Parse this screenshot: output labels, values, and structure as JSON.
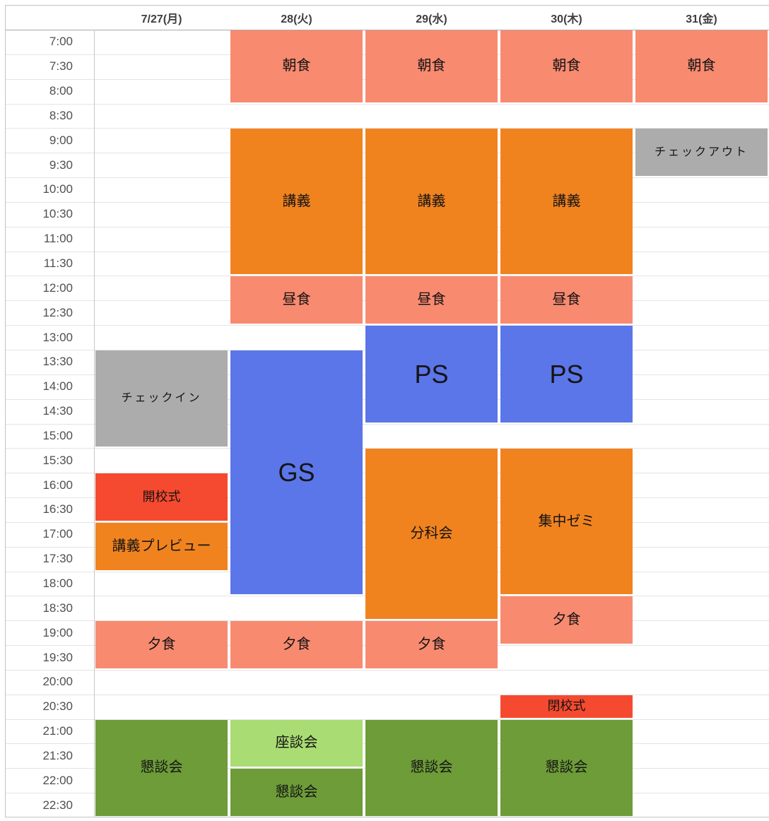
{
  "header": {
    "day_labels": [
      "7/27(月)",
      "28(火)",
      "29(水)",
      "30(木)",
      "31(金)"
    ]
  },
  "time_labels": [
    "7:00",
    "7:30",
    "8:00",
    "8:30",
    "9:00",
    "9:30",
    "10:00",
    "10:30",
    "11:00",
    "11:30",
    "12:00",
    "12:30",
    "13:00",
    "13:30",
    "14:00",
    "14:30",
    "15:00",
    "15:30",
    "16:00",
    "16:30",
    "17:00",
    "17:30",
    "18:00",
    "18:30",
    "19:00",
    "19:30",
    "20:00",
    "20:30",
    "21:00",
    "21:30",
    "22:00",
    "22:30"
  ],
  "palette": {
    "meal": "#F88A70",
    "lecture": "#F1831F",
    "neutral": "#ACACAC",
    "session": "#5B76E8",
    "ceremony": "#F54A2F",
    "social_dark": "#6D9C38",
    "social_light": "#A9DC72",
    "grid_line": "#E4E4E4",
    "outer_border": "#C2C2C2",
    "header_border": "#A9A9A9",
    "time_col_border": "#C6C6C6",
    "time_text": "#4F4F4F",
    "header_text": "#3F3F3F",
    "event_text": "#141414"
  },
  "events": [
    {
      "name": "checkin",
      "day": 0,
      "label": "チェックイン",
      "start": "13:30",
      "end": "15:30",
      "color": "neutral",
      "size": "small"
    },
    {
      "name": "opening-ceremony",
      "day": 0,
      "label": "開校式",
      "start": "16:00",
      "end": "17:00",
      "color": "ceremony",
      "size": "compact"
    },
    {
      "name": "lecture-preview",
      "day": 0,
      "label": "講義プレビュー",
      "start": "17:00",
      "end": "18:00",
      "color": "lecture",
      "size": "normal"
    },
    {
      "name": "dinner",
      "day": 0,
      "label": "夕食",
      "start": "19:00",
      "end": "20:00",
      "color": "meal",
      "size": "normal"
    },
    {
      "name": "social-gathering",
      "day": 0,
      "label": "懇談会",
      "start": "21:00",
      "end": "23:00",
      "color": "social_dark",
      "size": "normal"
    },
    {
      "name": "breakfast",
      "day": 1,
      "label": "朝食",
      "start": "7:00",
      "end": "8:30",
      "color": "meal",
      "size": "normal"
    },
    {
      "name": "lecture",
      "day": 1,
      "label": "講義",
      "start": "9:00",
      "end": "12:00",
      "color": "lecture",
      "size": "normal"
    },
    {
      "name": "lunch",
      "day": 1,
      "label": "昼食",
      "start": "12:00",
      "end": "13:00",
      "color": "meal",
      "size": "normal"
    },
    {
      "name": "gs-session",
      "day": 1,
      "label": "GS",
      "start": "13:30",
      "end": "18:30",
      "color": "session",
      "size": "large"
    },
    {
      "name": "dinner",
      "day": 1,
      "label": "夕食",
      "start": "19:00",
      "end": "20:00",
      "color": "meal",
      "size": "normal"
    },
    {
      "name": "roundtable",
      "day": 1,
      "label": "座談会",
      "start": "21:00",
      "end": "22:00",
      "color": "social_light",
      "size": "normal"
    },
    {
      "name": "social-gathering",
      "day": 1,
      "label": "懇談会",
      "start": "22:00",
      "end": "23:00",
      "color": "social_dark",
      "size": "normal"
    },
    {
      "name": "breakfast",
      "day": 2,
      "label": "朝食",
      "start": "7:00",
      "end": "8:30",
      "color": "meal",
      "size": "normal"
    },
    {
      "name": "lecture",
      "day": 2,
      "label": "講義",
      "start": "9:00",
      "end": "12:00",
      "color": "lecture",
      "size": "normal"
    },
    {
      "name": "lunch",
      "day": 2,
      "label": "昼食",
      "start": "12:00",
      "end": "13:00",
      "color": "meal",
      "size": "normal"
    },
    {
      "name": "ps-session",
      "day": 2,
      "label": "PS",
      "start": "13:00",
      "end": "15:00",
      "color": "session",
      "size": "large"
    },
    {
      "name": "breakout-session",
      "day": 2,
      "label": "分科会",
      "start": "15:30",
      "end": "19:00",
      "color": "lecture",
      "size": "normal"
    },
    {
      "name": "dinner",
      "day": 2,
      "label": "夕食",
      "start": "19:00",
      "end": "20:00",
      "color": "meal",
      "size": "normal"
    },
    {
      "name": "social-gathering",
      "day": 2,
      "label": "懇談会",
      "start": "21:00",
      "end": "23:00",
      "color": "social_dark",
      "size": "normal"
    },
    {
      "name": "breakfast",
      "day": 3,
      "label": "朝食",
      "start": "7:00",
      "end": "8:30",
      "color": "meal",
      "size": "normal"
    },
    {
      "name": "lecture",
      "day": 3,
      "label": "講義",
      "start": "9:00",
      "end": "12:00",
      "color": "lecture",
      "size": "normal"
    },
    {
      "name": "lunch",
      "day": 3,
      "label": "昼食",
      "start": "12:00",
      "end": "13:00",
      "color": "meal",
      "size": "normal"
    },
    {
      "name": "ps-session",
      "day": 3,
      "label": "PS",
      "start": "13:00",
      "end": "15:00",
      "color": "session",
      "size": "large"
    },
    {
      "name": "intensive-seminar",
      "day": 3,
      "label": "集中ゼミ",
      "start": "15:30",
      "end": "18:30",
      "color": "lecture",
      "size": "normal"
    },
    {
      "name": "dinner",
      "day": 3,
      "label": "夕食",
      "start": "18:30",
      "end": "19:30",
      "color": "meal",
      "size": "normal"
    },
    {
      "name": "closing-ceremony",
      "day": 3,
      "label": "閉校式",
      "start": "20:30",
      "end": "21:00",
      "color": "ceremony",
      "size": "compact"
    },
    {
      "name": "social-gathering",
      "day": 3,
      "label": "懇談会",
      "start": "21:00",
      "end": "23:00",
      "color": "social_dark",
      "size": "normal"
    },
    {
      "name": "breakfast",
      "day": 4,
      "label": "朝食",
      "start": "7:00",
      "end": "8:30",
      "color": "meal",
      "size": "normal"
    },
    {
      "name": "checkout",
      "day": 4,
      "label": "チェックアウト",
      "start": "9:00",
      "end": "10:00",
      "color": "neutral",
      "size": "small"
    }
  ]
}
